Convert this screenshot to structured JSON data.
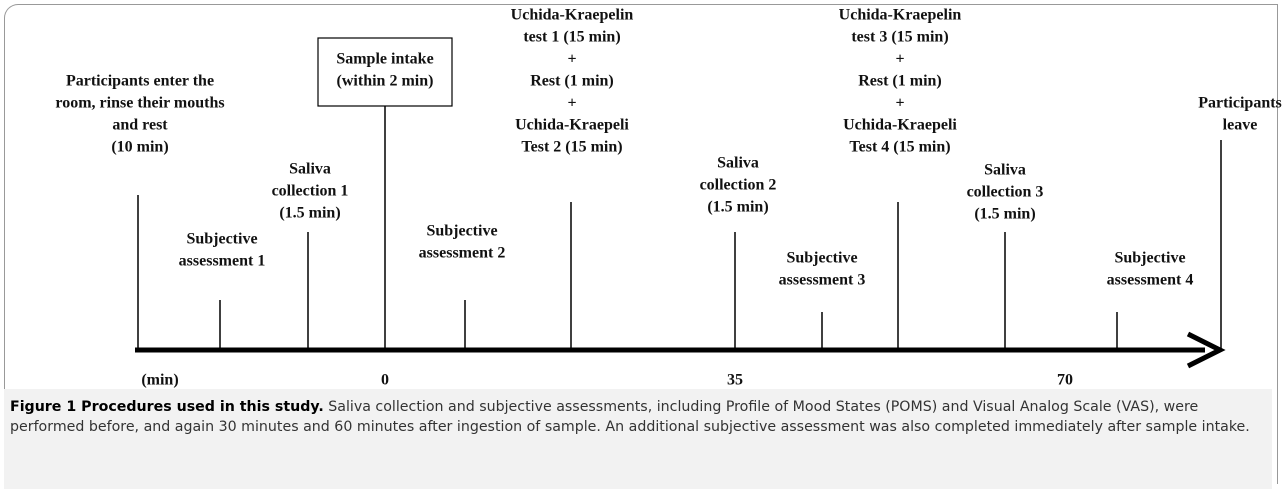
{
  "events": [
    {
      "lines": [
        "Participants enter the",
        "room, rinse their mouths",
        "and rest",
        "(10 min)"
      ]
    },
    {
      "lines": [
        "Subjective",
        "assessment 1"
      ]
    },
    {
      "lines": [
        "Saliva",
        "collection 1",
        "(1.5 min)"
      ]
    },
    {
      "lines": [
        "Sample intake",
        "(within 2 min)"
      ]
    },
    {
      "lines": [
        "Subjective",
        "assessment 2"
      ]
    },
    {
      "lines": [
        "Uchida-Kraepelin",
        "test 1 (15 min)",
        "+",
        "Rest (1 min)",
        "+",
        "Uchida-Kraepeli",
        "Test 2 (15 min)"
      ]
    },
    {
      "lines": [
        "Saliva",
        "collection 2",
        "(1.5 min)"
      ]
    },
    {
      "lines": [
        "Subjective",
        "assessment 3"
      ]
    },
    {
      "lines": [
        "Uchida-Kraepelin",
        "test 3 (15 min)",
        "+",
        "Rest (1 min)",
        "+",
        "Uchida-Kraepeli",
        "Test 4 (15 min)"
      ]
    },
    {
      "lines": [
        "Saliva",
        "collection 3",
        "(1.5 min)"
      ]
    },
    {
      "lines": [
        "Subjective",
        "assessment 4"
      ]
    },
    {
      "lines": [
        "Participants",
        "leave"
      ]
    }
  ],
  "axis_labels": [
    "(min)",
    "0",
    "35",
    "70"
  ],
  "caption": {
    "title": "Figure 1 Procedures used in this study.",
    "text": "Saliva collection and subjective assessments, including Profile of Mood States (POMS) and Visual Analog Scale (VAS), were performed before, and again 30 minutes and 60 minutes after ingestion of sample. An additional subjective assessment was also completed immediately after sample intake."
  }
}
